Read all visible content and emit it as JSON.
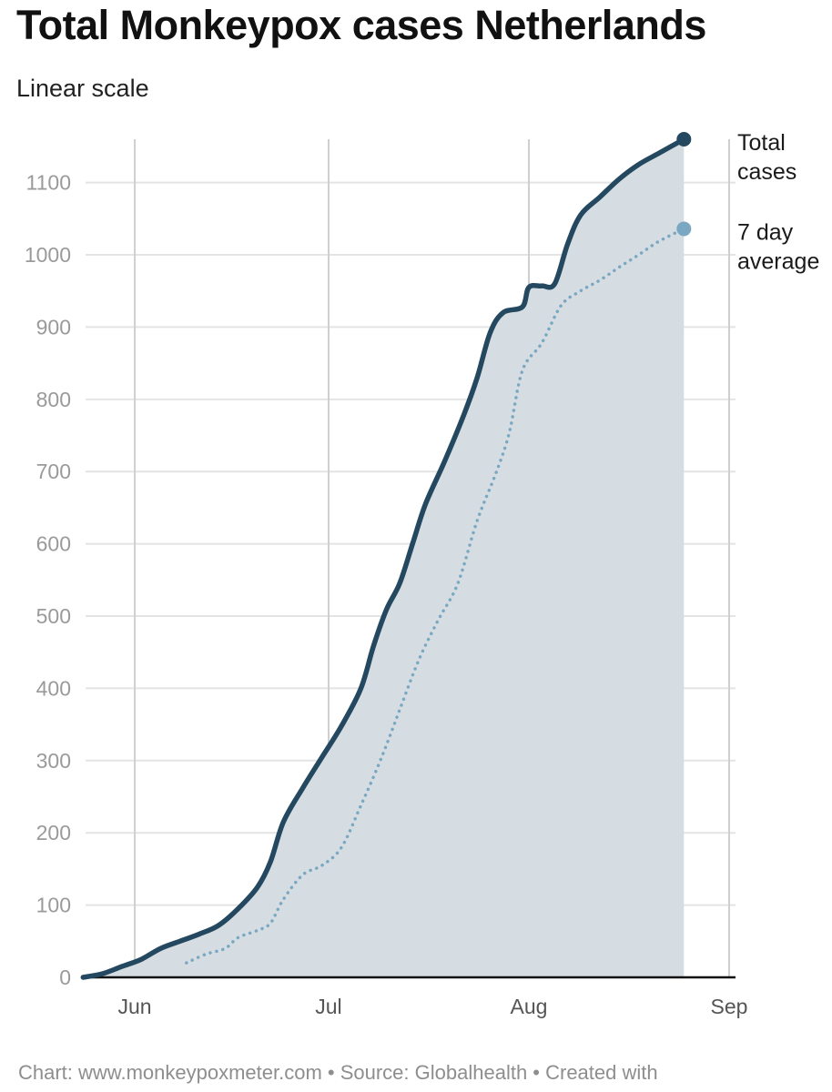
{
  "title": "Total Monkeypox cases Netherlands",
  "subtitle": "Linear scale",
  "footer": "Chart: www.monkeypoxmeter.com • Source: Globalhealth • Created with",
  "colors": {
    "total": "#24485f",
    "average": "#7aa7c2",
    "area": "#d6dde2",
    "grid": "#e4e4e4",
    "vgrid": "#cfcfcf",
    "axis": "#111111"
  },
  "chart_data": {
    "type": "line",
    "title": "Total Monkeypox cases Netherlands",
    "subtitle": "Linear scale",
    "xlabel": "",
    "ylabel": "",
    "ylim": [
      0,
      1160
    ],
    "xlim": [
      "2022-05-21",
      "2022-09-01"
    ],
    "yticks": [
      0,
      100,
      200,
      300,
      400,
      500,
      600,
      700,
      800,
      900,
      1000,
      1100
    ],
    "xticks": [
      {
        "label": "Jun",
        "date": "2022-06-01"
      },
      {
        "label": "Jul",
        "date": "2022-07-01"
      },
      {
        "label": "Aug",
        "date": "2022-08-01"
      },
      {
        "label": "Sep",
        "date": "2022-09-01"
      }
    ],
    "grid": true,
    "series": [
      {
        "name": "Total cases",
        "style": "solid",
        "area": true,
        "label_lines": [
          "Total",
          "cases"
        ],
        "points": [
          [
            "2022-05-24",
            0
          ],
          [
            "2022-05-27",
            5
          ],
          [
            "2022-05-30",
            15
          ],
          [
            "2022-06-02",
            25
          ],
          [
            "2022-06-05",
            40
          ],
          [
            "2022-06-08",
            50
          ],
          [
            "2022-06-11",
            60
          ],
          [
            "2022-06-14",
            72
          ],
          [
            "2022-06-17",
            95
          ],
          [
            "2022-06-20",
            125
          ],
          [
            "2022-06-22",
            160
          ],
          [
            "2022-06-24",
            215
          ],
          [
            "2022-06-27",
            262
          ],
          [
            "2022-06-30",
            305
          ],
          [
            "2022-07-03",
            348
          ],
          [
            "2022-07-06",
            400
          ],
          [
            "2022-07-08",
            460
          ],
          [
            "2022-07-10",
            510
          ],
          [
            "2022-07-12",
            545
          ],
          [
            "2022-07-14",
            600
          ],
          [
            "2022-07-16",
            655
          ],
          [
            "2022-07-19",
            715
          ],
          [
            "2022-07-22",
            780
          ],
          [
            "2022-07-24",
            830
          ],
          [
            "2022-07-26",
            892
          ],
          [
            "2022-07-28",
            920
          ],
          [
            "2022-07-31",
            928
          ],
          [
            "2022-08-01",
            955
          ],
          [
            "2022-08-03",
            957
          ],
          [
            "2022-08-05",
            960
          ],
          [
            "2022-08-07",
            1015
          ],
          [
            "2022-08-09",
            1055
          ],
          [
            "2022-08-12",
            1080
          ],
          [
            "2022-08-15",
            1105
          ],
          [
            "2022-08-18",
            1125
          ],
          [
            "2022-08-21",
            1140
          ],
          [
            "2022-08-24",
            1155
          ],
          [
            "2022-08-25",
            1160
          ]
        ]
      },
      {
        "name": "7 day average",
        "style": "dotted",
        "area": false,
        "label_lines": [
          "7 day",
          "average"
        ],
        "points": [
          [
            "2022-06-09",
            20
          ],
          [
            "2022-06-12",
            32
          ],
          [
            "2022-06-15",
            40
          ],
          [
            "2022-06-17",
            55
          ],
          [
            "2022-06-20",
            65
          ],
          [
            "2022-06-22",
            75
          ],
          [
            "2022-06-24",
            108
          ],
          [
            "2022-06-27",
            142
          ],
          [
            "2022-06-30",
            155
          ],
          [
            "2022-07-03",
            180
          ],
          [
            "2022-07-06",
            238
          ],
          [
            "2022-07-09",
            300
          ],
          [
            "2022-07-12",
            370
          ],
          [
            "2022-07-15",
            440
          ],
          [
            "2022-07-18",
            495
          ],
          [
            "2022-07-21",
            545
          ],
          [
            "2022-07-24",
            632
          ],
          [
            "2022-07-27",
            700
          ],
          [
            "2022-07-29",
            755
          ],
          [
            "2022-07-31",
            840
          ],
          [
            "2022-08-03",
            878
          ],
          [
            "2022-08-06",
            930
          ],
          [
            "2022-08-09",
            950
          ],
          [
            "2022-08-12",
            965
          ],
          [
            "2022-08-15",
            983
          ],
          [
            "2022-08-18",
            1000
          ],
          [
            "2022-08-21",
            1018
          ],
          [
            "2022-08-25",
            1036
          ]
        ]
      }
    ]
  }
}
